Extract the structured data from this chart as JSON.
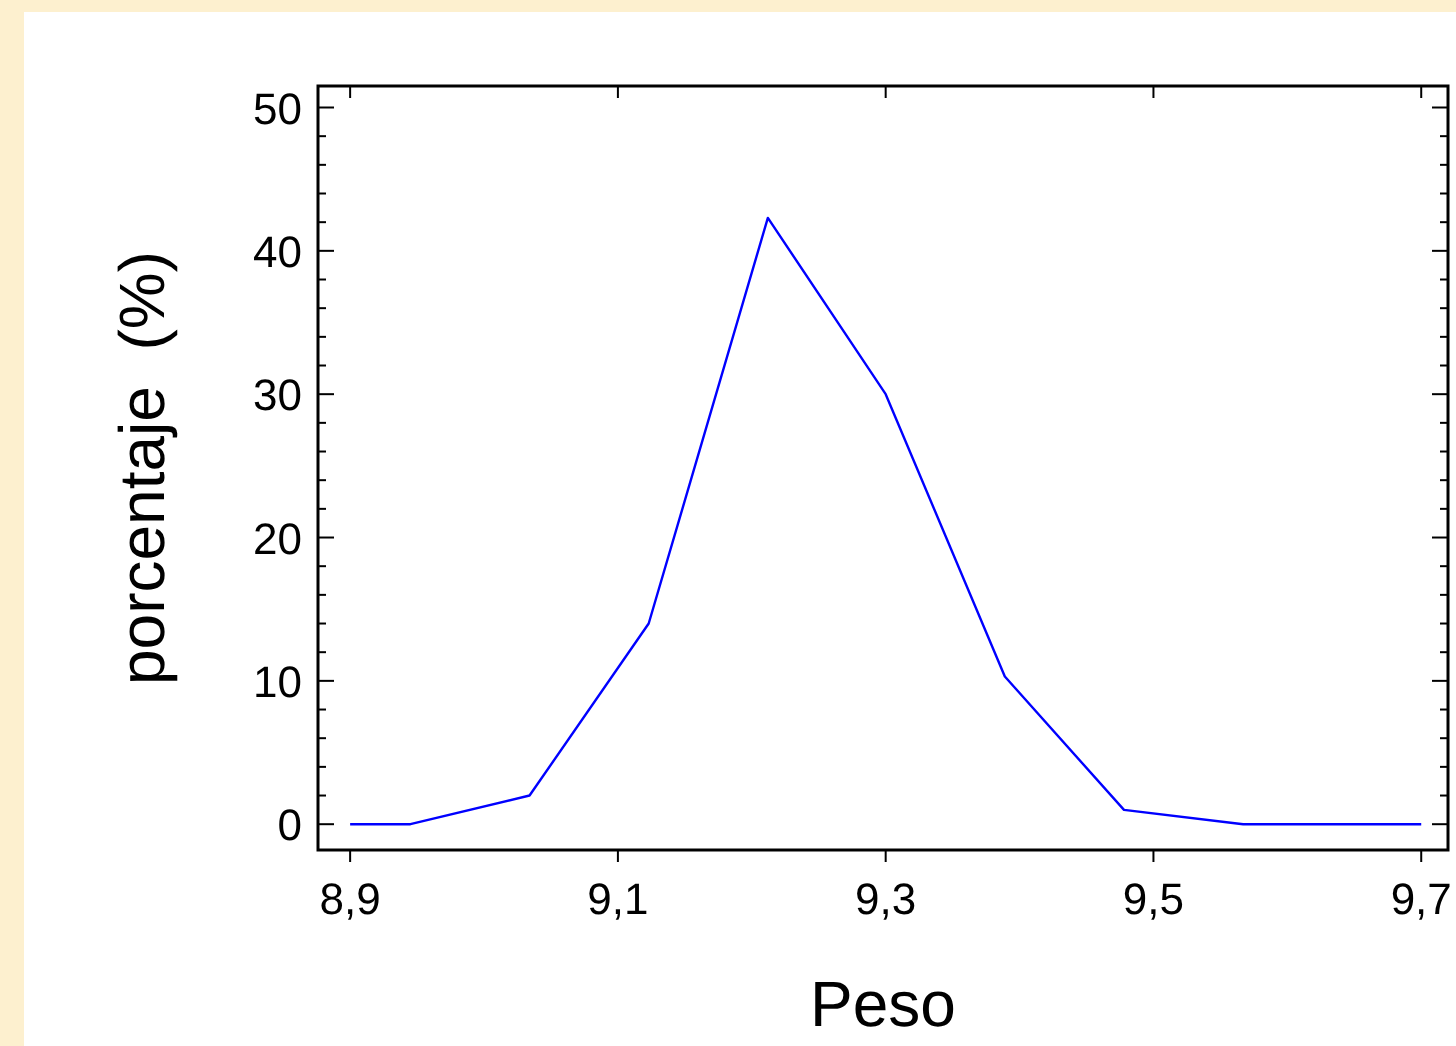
{
  "chart_data": {
    "type": "line",
    "xlabel": "Peso",
    "ylabel": "porcentaje  (%)",
    "x": [
      8.9,
      8.945,
      9.034,
      9.123,
      9.212,
      9.3,
      9.389,
      9.478,
      9.567,
      9.656,
      9.7
    ],
    "series": [
      {
        "color": "#0000ff",
        "values": [
          0,
          0,
          2,
          14,
          42.3,
          30,
          10.3,
          1,
          0,
          0,
          0
        ]
      }
    ],
    "xlim": [
      8.876,
      9.72
    ],
    "ylim": [
      -1.8,
      51.5
    ],
    "xticks": [
      {
        "value": 8.9,
        "label": "8,9"
      },
      {
        "value": 9.1,
        "label": "9,1"
      },
      {
        "value": 9.3,
        "label": "9,3"
      },
      {
        "value": 9.5,
        "label": "9,5"
      },
      {
        "value": 9.7,
        "label": "9,7"
      }
    ],
    "yticks": [
      0,
      10,
      20,
      30,
      40,
      50
    ],
    "grid": false,
    "marker": "none",
    "line_style": "solid"
  }
}
